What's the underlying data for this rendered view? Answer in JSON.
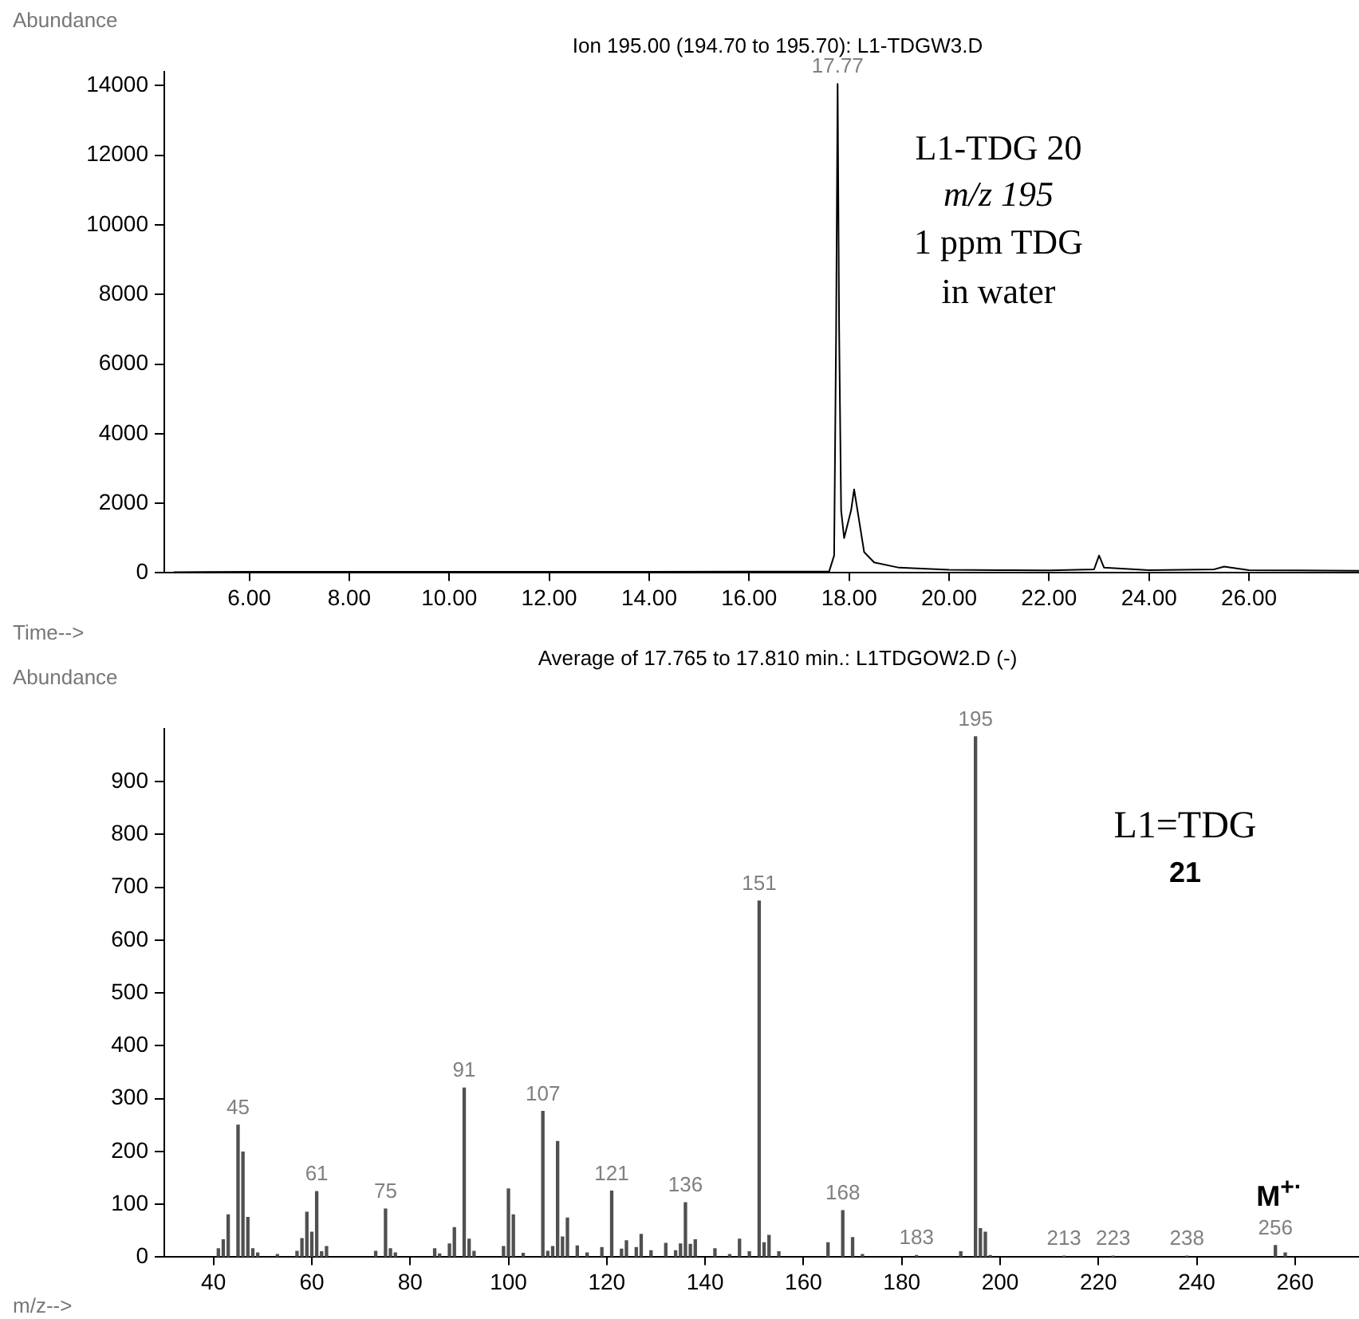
{
  "chart_data": [
    {
      "type": "line",
      "title": "Ion 195.00 (194.70 to 195.70): L1-TDGW3.D",
      "xlabel": "Time-->",
      "ylabel": "Abundance",
      "x": [
        4.5,
        6,
        8,
        10,
        12,
        14,
        16,
        17.6,
        17.7,
        17.74,
        17.77,
        17.8,
        17.84,
        17.9,
        17.97,
        18.04,
        18.1,
        18.2,
        18.3,
        18.5,
        19,
        20,
        21,
        22,
        22.9,
        23,
        23.1,
        24,
        25.3,
        25.5,
        26,
        27,
        28.2
      ],
      "series": [
        {
          "color": "#000000",
          "values": [
            20,
            30,
            30,
            30,
            30,
            30,
            40,
            40,
            500,
            7000,
            14050,
            7000,
            1800,
            1000,
            1400,
            1800,
            2400,
            1500,
            600,
            300,
            150,
            90,
            80,
            70,
            100,
            500,
            150,
            80,
            100,
            180,
            80,
            70,
            60
          ]
        }
      ],
      "xlim": [
        4.3,
        28.2
      ],
      "xticks": [
        {
          "value": 6,
          "label": "6.00"
        },
        {
          "value": 8,
          "label": "8.00"
        },
        {
          "value": 10,
          "label": "10.00"
        },
        {
          "value": 12,
          "label": "12.00"
        },
        {
          "value": 14,
          "label": "14.00"
        },
        {
          "value": 16,
          "label": "16.00"
        },
        {
          "value": 18,
          "label": "18.00"
        },
        {
          "value": 20,
          "label": "20.00"
        },
        {
          "value": 22,
          "label": "22.00"
        },
        {
          "value": 24,
          "label": "24.00"
        },
        {
          "value": 26,
          "label": "26.00"
        }
      ],
      "ylim": [
        0,
        14400
      ],
      "yticks": [
        0,
        2000,
        4000,
        6000,
        8000,
        10000,
        12000,
        14000
      ],
      "grid": false,
      "legend": false,
      "marker": "none",
      "line_style": "solid",
      "annotations": [
        {
          "text": "17.77",
          "x": 17.77,
          "y": 14050
        },
        "L1-TDG 20",
        "m/z 195",
        "1 ppm TDG",
        "in water"
      ]
    },
    {
      "type": "bar",
      "title": "Average of 17.765 to 17.810 min.: L1TDGOW2.D (-)",
      "xlabel": "m/z-->",
      "ylabel": "Abundance",
      "x": [
        41,
        42,
        43,
        45,
        46,
        47,
        48,
        49,
        53,
        57,
        58,
        59,
        60,
        61,
        62,
        63,
        73,
        75,
        76,
        77,
        85,
        86,
        88,
        89,
        91,
        92,
        93,
        99,
        100,
        101,
        103,
        107,
        108,
        109,
        110,
        111,
        112,
        114,
        116,
        119,
        121,
        123,
        124,
        126,
        127,
        129,
        132,
        134,
        135,
        136,
        137,
        138,
        142,
        145,
        147,
        149,
        151,
        152,
        153,
        155,
        165,
        168,
        170,
        172,
        183,
        192,
        195,
        196,
        197,
        198,
        213,
        223,
        238,
        256,
        258
      ],
      "series": [
        {
          "color": "#505050",
          "values": [
            16,
            33,
            80,
            250,
            199,
            75,
            16,
            8,
            5,
            11,
            35,
            85,
            47,
            124,
            10,
            20,
            11,
            91,
            16,
            8,
            16,
            6,
            25,
            56,
            320,
            34,
            11,
            20,
            129,
            80,
            7,
            276,
            11,
            20,
            219,
            38,
            74,
            21,
            8,
            18,
            125,
            15,
            31,
            18,
            43,
            12,
            26,
            12,
            25,
            103,
            24,
            33,
            16,
            5,
            34,
            10,
            674,
            27,
            41,
            10,
            27,
            88,
            37,
            5,
            3,
            10,
            985,
            54,
            47,
            3,
            2,
            2,
            2,
            22,
            8
          ]
        }
      ],
      "xlim": [
        30,
        273
      ],
      "xticks": [
        40,
        60,
        80,
        100,
        120,
        140,
        160,
        180,
        200,
        220,
        240,
        260
      ],
      "ylim": [
        0,
        1000
      ],
      "yticks": [
        0,
        100,
        200,
        300,
        400,
        500,
        600,
        700,
        800,
        900
      ],
      "grid": false,
      "legend": false,
      "annotations": [
        {
          "text": "45",
          "x": 45,
          "y": 250
        },
        {
          "text": "61",
          "x": 61,
          "y": 124
        },
        {
          "text": "75",
          "x": 75,
          "y": 91
        },
        {
          "text": "91",
          "x": 91,
          "y": 320
        },
        {
          "text": "107",
          "x": 107,
          "y": 276
        },
        {
          "text": "121",
          "x": 121,
          "y": 125
        },
        {
          "text": "136",
          "x": 136,
          "y": 103
        },
        {
          "text": "151",
          "x": 151,
          "y": 674
        },
        {
          "text": "168",
          "x": 168,
          "y": 88
        },
        {
          "text": "183",
          "x": 183,
          "y": 3
        },
        {
          "text": "195",
          "x": 195,
          "y": 985
        },
        {
          "text": "213",
          "x": 213,
          "y": 2
        },
        {
          "text": "223",
          "x": 223,
          "y": 2
        },
        {
          "text": "238",
          "x": 238,
          "y": 2
        },
        {
          "text": "256",
          "x": 256,
          "y": 22
        },
        "L1=TDG",
        "21",
        "M$^{+·}$"
      ]
    }
  ]
}
